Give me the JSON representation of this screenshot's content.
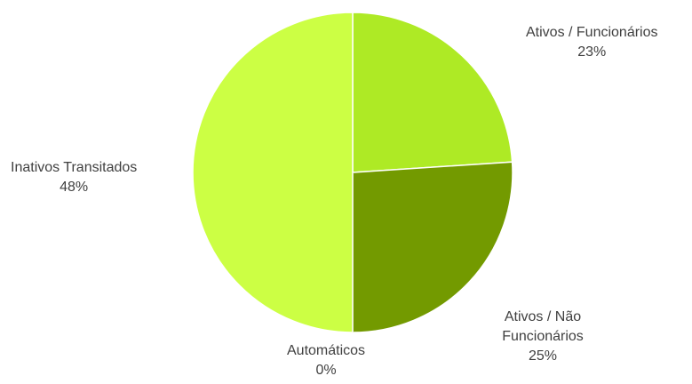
{
  "chart_data": {
    "type": "pie",
    "title": "",
    "slices": [
      {
        "label": "Ativos / Funcionários",
        "value": 23,
        "value_label": "23%",
        "color": "#AEEA25"
      },
      {
        "label": "Ativos / Não Funcionários",
        "value": 25,
        "value_label": "25%",
        "color": "#739A00"
      },
      {
        "label": "Automáticos",
        "value": 0,
        "value_label": "0%",
        "color": "#5A7A00"
      },
      {
        "label": "Inativos Transitados",
        "value": 48,
        "value_label": "48%",
        "color": "#CCFF44"
      }
    ],
    "legend": "none"
  }
}
